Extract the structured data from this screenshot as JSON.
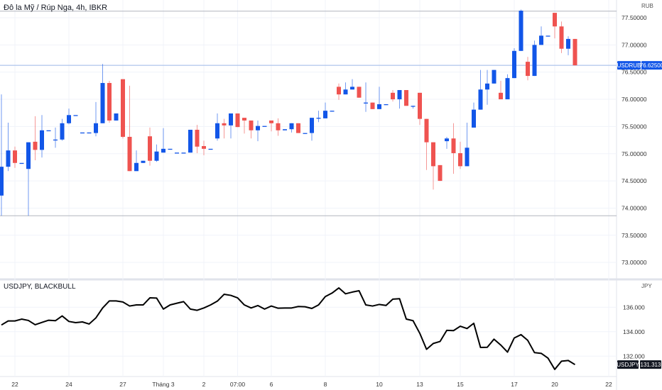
{
  "colors": {
    "up": "#1256E8",
    "down": "#EF5350",
    "grid": "#F0F3FA",
    "last_price_line": "#9CB8E8",
    "jpy_line": "#000000",
    "jpy_badge": "#131722"
  },
  "main": {
    "title": "Đô la Mỹ / Rúp Nga, 4h, IBKR",
    "currency": "RUB",
    "symbol_badge": "USDRUB",
    "last_price_label": "76.62500"
  },
  "sub": {
    "title": "USDJPY, BLACKBULL",
    "currency": "JPY",
    "symbol_badge": "USDJPY",
    "last_price_label": "131.313"
  },
  "chart_data": [
    {
      "type": "candlestick",
      "title": "Đô la Mỹ / Rúp Nga, 4h, IBKR",
      "ylabel": "RUB",
      "ylim": [
        72.9,
        77.8
      ],
      "y_ticks": [
        "77.50000",
        "77.00000",
        "76.50000",
        "76.00000",
        "75.50000",
        "75.00000",
        "74.50000",
        "74.00000",
        "73.50000",
        "73.00000"
      ],
      "last_price": 76.625,
      "horizontal_lines": [
        77.62,
        73.86
      ],
      "grid": true,
      "ohlc": [
        [
          74.23,
          76.09,
          73.86,
          74.76
        ],
        [
          74.76,
          75.57,
          74.68,
          75.06
        ],
        [
          75.06,
          75.13,
          74.74,
          74.83
        ],
        [
          74.83,
          74.83,
          74.83,
          74.83
        ],
        [
          74.72,
          75.21,
          73.86,
          75.21
        ],
        [
          75.22,
          75.69,
          74.88,
          75.07
        ],
        [
          75.07,
          75.71,
          74.93,
          75.43
        ],
        [
          75.43,
          75.43,
          75.43,
          75.43
        ],
        [
          75.26,
          75.48,
          75.11,
          75.26
        ],
        [
          75.26,
          75.64,
          75.24,
          75.56
        ],
        [
          75.56,
          75.83,
          75.54,
          75.71
        ],
        [
          75.71,
          75.71,
          75.71,
          75.71
        ],
        [
          75.39,
          75.39,
          75.39,
          75.39
        ],
        [
          75.39,
          75.39,
          75.39,
          75.39
        ],
        [
          75.38,
          75.95,
          75.32,
          75.56
        ],
        [
          75.56,
          76.65,
          75.56,
          76.3
        ],
        [
          76.3,
          76.34,
          75.57,
          75.61
        ],
        [
          75.61,
          75.74,
          75.61,
          75.74
        ],
        [
          76.37,
          76.37,
          75.28,
          75.31
        ],
        [
          75.31,
          76.25,
          74.68,
          74.68
        ],
        [
          74.68,
          75.06,
          74.68,
          74.83
        ],
        [
          74.83,
          74.87,
          74.83,
          74.87
        ],
        [
          75.32,
          75.48,
          74.78,
          74.87
        ],
        [
          74.87,
          75.17,
          74.85,
          75.04
        ],
        [
          75.02,
          75.47,
          75.02,
          75.09
        ],
        [
          75.09,
          75.09,
          75.09,
          75.09
        ],
        [
          75.02,
          75.02,
          75.02,
          75.02
        ],
        [
          75.02,
          75.02,
          75.02,
          75.02
        ],
        [
          75.02,
          75.44,
          75.02,
          75.44
        ],
        [
          75.44,
          75.53,
          75.01,
          75.13
        ],
        [
          75.14,
          75.24,
          74.97,
          75.09
        ],
        [
          75.09,
          75.09,
          75.09,
          75.09
        ],
        [
          75.28,
          75.74,
          75.24,
          75.56
        ],
        [
          75.56,
          75.64,
          75.28,
          75.52
        ],
        [
          75.52,
          75.74,
          75.28,
          75.74
        ],
        [
          75.74,
          75.74,
          75.49,
          75.49
        ],
        [
          75.66,
          75.66,
          75.37,
          75.61
        ],
        [
          75.61,
          75.61,
          75.28,
          75.43
        ],
        [
          75.43,
          75.61,
          75.23,
          75.51
        ],
        [
          75.51,
          75.51,
          75.51,
          75.51
        ],
        [
          75.61,
          75.61,
          75.41,
          75.56
        ],
        [
          75.56,
          75.65,
          75.33,
          75.43
        ],
        [
          75.43,
          75.45,
          75.43,
          75.45
        ],
        [
          75.45,
          75.56,
          75.39,
          75.56
        ],
        [
          75.56,
          75.56,
          75.38,
          75.38
        ],
        [
          75.38,
          75.38,
          75.38,
          75.38
        ],
        [
          75.38,
          75.66,
          75.24,
          75.66
        ],
        [
          75.66,
          75.79,
          75.58,
          75.66
        ],
        [
          75.65,
          75.94,
          75.65,
          75.79
        ],
        [
          75.79,
          75.79,
          75.79,
          75.79
        ],
        [
          76.23,
          76.29,
          75.99,
          76.09
        ],
        [
          76.09,
          76.31,
          76.09,
          76.18
        ],
        [
          76.18,
          76.37,
          76.18,
          76.23
        ],
        [
          76.23,
          76.23,
          76.03,
          76.03
        ],
        [
          75.94,
          76.31,
          75.77,
          75.94
        ],
        [
          75.94,
          75.94,
          75.82,
          75.82
        ],
        [
          75.82,
          76.23,
          75.82,
          75.91
        ],
        [
          75.91,
          75.91,
          75.91,
          75.91
        ],
        [
          76.12,
          76.17,
          75.96,
          76.0
        ],
        [
          76.0,
          76.17,
          75.83,
          76.17
        ],
        [
          76.17,
          76.17,
          75.88,
          75.88
        ],
        [
          75.88,
          75.88,
          75.83,
          75.88
        ],
        [
          76.12,
          76.12,
          75.53,
          75.64
        ],
        [
          75.64,
          75.64,
          74.7,
          75.21
        ],
        [
          75.21,
          75.21,
          74.34,
          74.77
        ],
        [
          74.79,
          74.79,
          74.5,
          74.5
        ],
        [
          75.23,
          75.31,
          75.09,
          75.28
        ],
        [
          75.28,
          75.56,
          74.63,
          75.01
        ],
        [
          75.01,
          75.22,
          74.72,
          74.77
        ],
        [
          74.77,
          75.57,
          74.77,
          75.11
        ],
        [
          75.48,
          75.94,
          75.48,
          75.81
        ],
        [
          75.81,
          76.54,
          75.81,
          76.18
        ],
        [
          76.18,
          76.54,
          75.9,
          76.29
        ],
        [
          76.29,
          76.54,
          76.29,
          76.54
        ],
        [
          76.12,
          76.34,
          76.0,
          76.0
        ],
        [
          76.0,
          76.46,
          76.0,
          76.39
        ],
        [
          76.39,
          76.94,
          76.39,
          76.89
        ],
        [
          76.89,
          77.65,
          76.89,
          77.63
        ],
        [
          76.69,
          76.78,
          76.35,
          76.43
        ],
        [
          76.43,
          77.08,
          76.43,
          77.0
        ],
        [
          77.0,
          77.34,
          77.0,
          77.17
        ],
        [
          77.17,
          77.17,
          77.17,
          77.17
        ],
        [
          77.59,
          77.59,
          77.12,
          77.34
        ],
        [
          77.34,
          77.43,
          76.85,
          76.93
        ],
        [
          76.93,
          77.16,
          76.81,
          77.11
        ],
        [
          77.11,
          77.11,
          76.625,
          76.625
        ]
      ]
    },
    {
      "type": "line",
      "title": "USDJPY, BLACKBULL",
      "ylabel": "JPY",
      "y_ticks": [
        "136.000",
        "134.000",
        "132.000"
      ],
      "last_price": 131.313,
      "values": [
        134.55,
        134.88,
        134.88,
        135.03,
        134.92,
        134.57,
        134.76,
        134.94,
        134.9,
        135.29,
        134.84,
        134.74,
        134.8,
        134.63,
        135.13,
        135.94,
        136.52,
        136.52,
        136.43,
        136.1,
        136.19,
        136.19,
        136.77,
        136.75,
        135.85,
        136.19,
        136.33,
        136.46,
        135.85,
        135.75,
        135.94,
        136.19,
        136.5,
        137.06,
        136.97,
        136.77,
        136.19,
        135.94,
        136.14,
        135.85,
        136.1,
        135.92,
        135.94,
        135.94,
        136.06,
        136.04,
        135.9,
        136.19,
        136.87,
        137.16,
        137.58,
        137.1,
        137.24,
        137.35,
        136.19,
        136.1,
        136.23,
        136.15,
        136.66,
        136.7,
        135.03,
        134.9,
        133.87,
        132.56,
        133.04,
        133.2,
        134.11,
        134.09,
        134.45,
        134.26,
        134.69,
        132.71,
        132.73,
        133.39,
        132.91,
        132.33,
        133.49,
        133.76,
        133.29,
        132.29,
        132.23,
        131.84,
        130.92,
        131.59,
        131.65,
        131.31
      ]
    }
  ],
  "time_axis": {
    "labels": [
      "22",
      "24",
      "27",
      "Tháng 3",
      "2",
      "07:00",
      "6",
      "8",
      "10",
      "13",
      "15",
      "17",
      "20",
      "22"
    ],
    "label_bar_index": [
      2,
      10,
      18,
      24,
      30,
      35,
      40,
      48,
      56,
      62,
      68,
      76,
      82,
      90
    ]
  }
}
